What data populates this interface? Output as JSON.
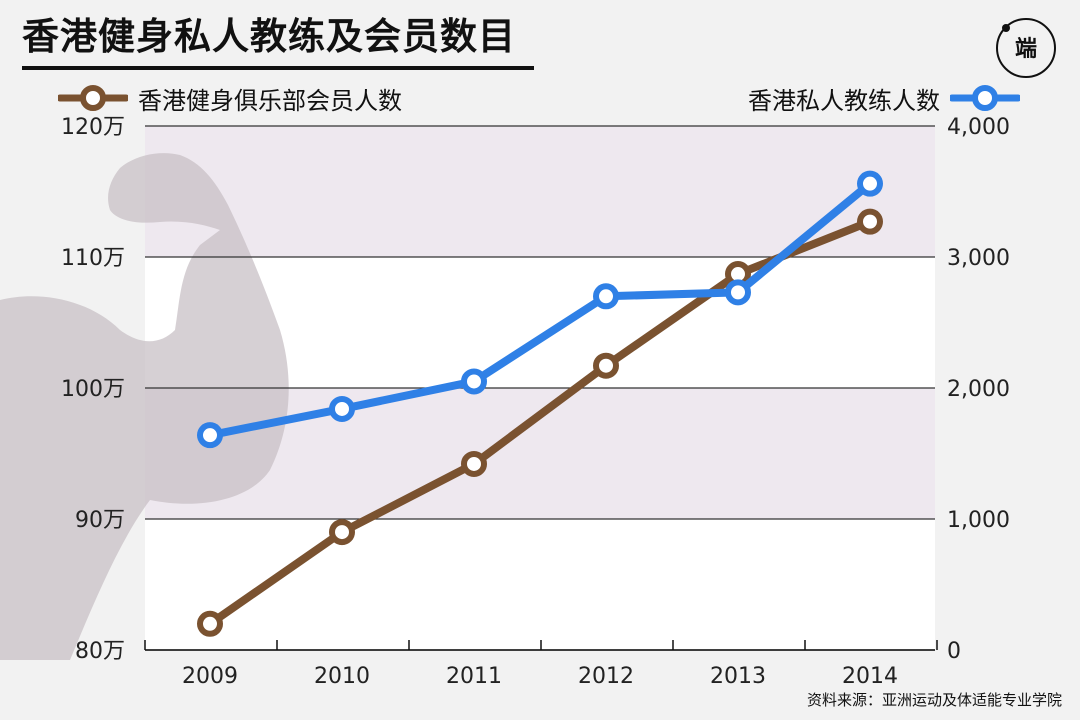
{
  "title": "香港健身私人教练及会员数目",
  "logo": {
    "text": "端",
    "icon": "duan-logo-icon"
  },
  "source": "资料来源：亚洲运动及体适能专业学院",
  "colors": {
    "members": "#7a5230",
    "trainers": "#2f80e6",
    "band": "#eee8ef",
    "white_band": "#ffffff",
    "silhouette": "#c8c0c6"
  },
  "decoration": {
    "icon": "flexed-arm-icon"
  },
  "chart_data": {
    "type": "line",
    "x": [
      "2009",
      "2010",
      "2011",
      "2012",
      "2013",
      "2014"
    ],
    "series": [
      {
        "name": "香港健身俱乐部会员人数",
        "axis": "left",
        "values": [
          820000,
          890000,
          942000,
          1017000,
          1087000,
          1127000
        ]
      },
      {
        "name": "香港私人教练人数",
        "axis": "right",
        "values": [
          1640,
          1840,
          2050,
          2700,
          2730,
          3560
        ]
      }
    ],
    "y_left": {
      "range": [
        800000,
        1200000
      ],
      "ticks": [
        800000,
        900000,
        1000000,
        1100000,
        1200000
      ],
      "tick_labels": [
        "80万",
        "90万",
        "100万",
        "110万",
        "120万"
      ]
    },
    "y_right": {
      "range": [
        0,
        4000
      ],
      "ticks": [
        0,
        1000,
        2000,
        3000,
        4000
      ],
      "tick_labels": [
        "0",
        "1,000",
        "2,000",
        "3,000",
        "4,000"
      ]
    },
    "grid": true,
    "legend": "top"
  }
}
